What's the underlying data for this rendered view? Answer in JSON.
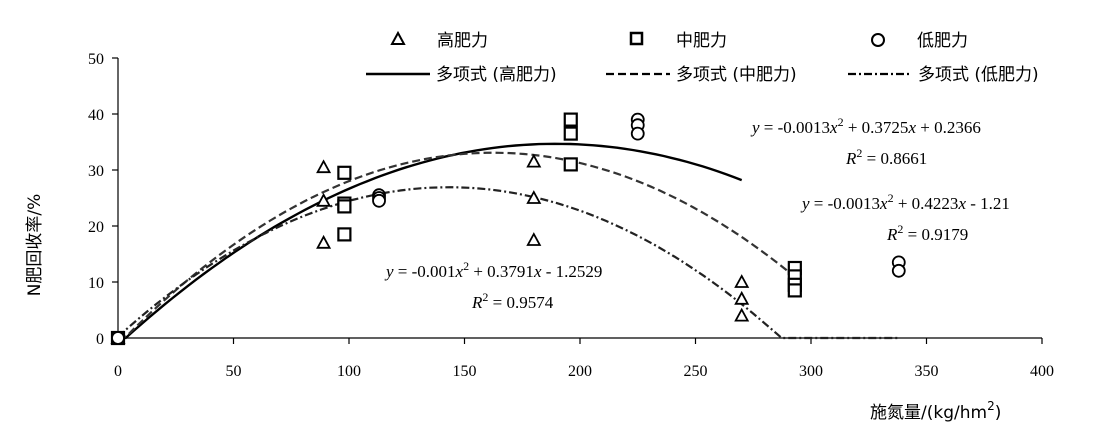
{
  "chart_data": {
    "type": "scatter",
    "title": "",
    "xlabel": "施氮量/(kg/hm",
    "xlabel_sup": "2",
    "xlabel_tail": ")",
    "ylabel": "N肥回收率/%",
    "xlim": [
      0,
      400
    ],
    "ylim": [
      0,
      50
    ],
    "x_ticks": [
      "0",
      "50",
      "100",
      "150",
      "200",
      "250",
      "300",
      "350",
      "400"
    ],
    "y_ticks": [
      "0",
      "10",
      "20",
      "30",
      "40",
      "50"
    ],
    "grid": false,
    "legend_position": "top",
    "series": [
      {
        "name": "高肥力",
        "marker": "triangle",
        "points": [
          [
            0,
            0
          ],
          [
            89,
            30.5
          ],
          [
            89,
            24.5
          ],
          [
            89,
            17
          ],
          [
            180,
            31.5
          ],
          [
            180,
            25
          ],
          [
            180,
            17.5
          ],
          [
            270,
            10
          ],
          [
            270,
            7
          ],
          [
            270,
            4
          ]
        ]
      },
      {
        "name": "中肥力",
        "marker": "square",
        "points": [
          [
            0,
            0
          ],
          [
            98,
            29.5
          ],
          [
            98,
            24
          ],
          [
            98,
            23.5
          ],
          [
            98,
            18.5
          ],
          [
            196,
            39
          ],
          [
            196,
            36.5
          ],
          [
            196,
            31
          ],
          [
            293,
            12.5
          ],
          [
            293,
            11
          ],
          [
            293,
            9.5
          ],
          [
            293,
            8.5
          ]
        ]
      },
      {
        "name": "低肥力",
        "marker": "circle",
        "points": [
          [
            0,
            0
          ],
          [
            113,
            25.5
          ],
          [
            113,
            25
          ],
          [
            113,
            24.5
          ],
          [
            225,
            39
          ],
          [
            225,
            38
          ],
          [
            225,
            36.5
          ],
          [
            338,
            13.5
          ],
          [
            338,
            12
          ]
        ]
      }
    ],
    "trendlines": [
      {
        "name": "多项式 (高肥力)",
        "style": "solid",
        "a": -0.001,
        "b": 0.3791,
        "c": -1.2529,
        "x_range": [
          0,
          270
        ]
      },
      {
        "name": "多项式 (中肥力)",
        "style": "dashed",
        "a": -0.0013,
        "b": 0.4223,
        "c": -1.21,
        "x_range": [
          0,
          293
        ]
      },
      {
        "name": "多项式 (低肥力)",
        "style": "dashdot",
        "a": -0.0013,
        "b": 0.3725,
        "c": 0.2366,
        "x_range": [
          0,
          338
        ]
      }
    ],
    "annotations": {
      "high": {
        "eq_y": "y",
        "eq_pre": " = -0.001",
        "eq_x1": "x",
        "eq_sup": "2",
        "eq_mid": " + 0.3791",
        "eq_x2": "x",
        "eq_post": " - 1.2529",
        "r_pre": "R",
        "r_sup": "2",
        "r_post": " = 0.9574"
      },
      "mid": {
        "eq_y": "y",
        "eq_pre": " = -0.0013",
        "eq_x1": "x",
        "eq_sup": "2",
        "eq_mid": " + 0.4223",
        "eq_x2": "x",
        "eq_post": " - 1.21",
        "r_pre": "R",
        "r_sup": "2",
        "r_post": " = 0.9179"
      },
      "low": {
        "eq_y": "y",
        "eq_pre": " = -0.0013",
        "eq_x1": "x",
        "eq_sup": "2",
        "eq_mid": " + 0.3725",
        "eq_x2": "x",
        "eq_post": " + 0.2366",
        "r_pre": "R",
        "r_sup": "2",
        "r_post": " = 0.8661"
      }
    }
  }
}
